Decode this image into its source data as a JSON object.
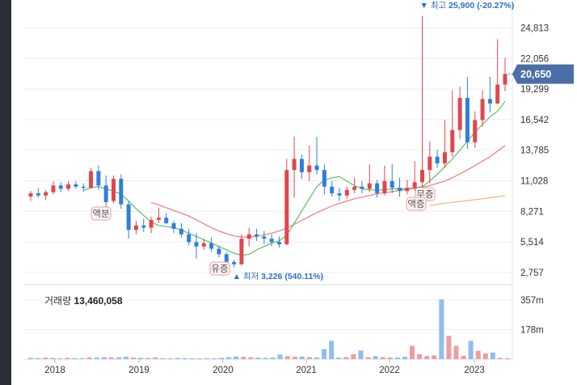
{
  "chart_data": {
    "type": "candlestick",
    "x_axis_labels": [
      "2018",
      "2019",
      "2020",
      "2021",
      "2022",
      "2023"
    ],
    "y_axis_ticks": [
      "24,813",
      "22,056",
      "19,299",
      "16,542",
      "13,785",
      "11,028",
      "8,271",
      "5,514",
      "2,757"
    ],
    "y_tick_values": [
      24813,
      22056,
      19299,
      16542,
      13785,
      11028,
      8271,
      5514,
      2757
    ],
    "ylim": [
      1800,
      26600
    ],
    "current_price_label": "20,650",
    "current_price": 20650,
    "high_marker": {
      "label": "최고",
      "value": "25,900",
      "pct": "(-20.27%)"
    },
    "low_marker": {
      "label": "최저",
      "value": "3,226",
      "pct": "(540.11%)"
    },
    "event_tags": [
      "액분",
      "유증",
      "무증",
      "액증"
    ],
    "volume": {
      "label": "거래량",
      "value": "13,460,058",
      "ticks": [
        "357m",
        "178m"
      ],
      "tick_values": [
        357,
        178
      ],
      "max_value": 400
    },
    "candles": [
      [
        9600,
        10100,
        9200,
        9900
      ],
      [
        9900,
        10400,
        9500,
        9700
      ],
      [
        9700,
        10200,
        9300,
        10000
      ],
      [
        10000,
        11000,
        9800,
        10600
      ],
      [
        10600,
        10900,
        10000,
        10300
      ],
      [
        10300,
        11000,
        10100,
        10700
      ],
      [
        10700,
        11000,
        10300,
        10500
      ],
      [
        10500,
        10800,
        10000,
        10400
      ],
      [
        10400,
        12200,
        10300,
        11900
      ],
      [
        11900,
        12400,
        10200,
        10600
      ],
      [
        10600,
        11500,
        8600,
        9100
      ],
      [
        9200,
        11500,
        9000,
        11200
      ],
      [
        11200,
        11600,
        8500,
        8900
      ],
      [
        8900,
        9200,
        5800,
        6600
      ],
      [
        6600,
        7400,
        6200,
        7000
      ],
      [
        7000,
        7600,
        6400,
        6800
      ],
      [
        6800,
        7800,
        6300,
        7500
      ],
      [
        7500,
        8600,
        7200,
        7700
      ],
      [
        7700,
        8100,
        7100,
        7200
      ],
      [
        7200,
        7400,
        6300,
        6700
      ],
      [
        6700,
        7200,
        5900,
        6200
      ],
      [
        6200,
        6700,
        5200,
        5500
      ],
      [
        5500,
        6300,
        4000,
        5100
      ],
      [
        5100,
        5800,
        4800,
        5400
      ],
      [
        5400,
        5900,
        4600,
        4900
      ],
      [
        4900,
        5200,
        4100,
        4400
      ],
      [
        4400,
        4600,
        3300,
        3700
      ],
      [
        3700,
        3900,
        3226,
        3500
      ],
      [
        3500,
        6200,
        3400,
        5800
      ],
      [
        5800,
        6800,
        5100,
        6200
      ],
      [
        6200,
        6700,
        5600,
        6000
      ],
      [
        6000,
        6500,
        5300,
        5800
      ],
      [
        5800,
        6200,
        5100,
        5500
      ],
      [
        5500,
        6000,
        5000,
        5300
      ],
      [
        5300,
        13000,
        5200,
        12000
      ],
      [
        12000,
        15000,
        9500,
        13000
      ],
      [
        13000,
        13400,
        11200,
        11800
      ],
      [
        11800,
        14200,
        11000,
        12400
      ],
      [
        12400,
        15000,
        11600,
        12000
      ],
      [
        12000,
        12500,
        9800,
        10500
      ],
      [
        10500,
        11000,
        9600,
        9900
      ],
      [
        9900,
        10400,
        9200,
        9700
      ],
      [
        9700,
        10500,
        9400,
        10200
      ],
      [
        10200,
        11300,
        9900,
        10500
      ],
      [
        10500,
        11000,
        9900,
        10300
      ],
      [
        10300,
        12500,
        10000,
        10800
      ],
      [
        10800,
        11100,
        9500,
        9900
      ],
      [
        9900,
        12400,
        9700,
        11000
      ],
      [
        11000,
        12500,
        9900,
        10400
      ],
      [
        10400,
        11300,
        9600,
        10100
      ],
      [
        10100,
        11100,
        9800,
        10400
      ],
      [
        10400,
        12800,
        10100,
        10900
      ],
      [
        10900,
        25900,
        10000,
        12000
      ],
      [
        12000,
        14600,
        10800,
        13200
      ],
      [
        13200,
        13800,
        12200,
        12600
      ],
      [
        12600,
        16500,
        12200,
        13600
      ],
      [
        13600,
        19200,
        13200,
        15600
      ],
      [
        15600,
        19500,
        14800,
        18500
      ],
      [
        18500,
        20400,
        13900,
        14500
      ],
      [
        14500,
        17300,
        14000,
        16500
      ],
      [
        16500,
        19200,
        15900,
        18400
      ],
      [
        18400,
        20400,
        17200,
        18000
      ],
      [
        18000,
        23800,
        17900,
        19700
      ],
      [
        19700,
        22100,
        19100,
        20650
      ]
    ],
    "ma_short": [
      null,
      null,
      null,
      null,
      null,
      null,
      null,
      10150,
      10400,
      10500,
      10300,
      10100,
      9800,
      9200,
      8500,
      7900,
      7300,
      7000,
      6900,
      6800,
      6600,
      6300,
      6000,
      5700,
      5400,
      5100,
      4800,
      4500,
      4300,
      4400,
      4800,
      5100,
      5400,
      5600,
      6100,
      7200,
      8300,
      9400,
      10500,
      11100,
      11300,
      11400,
      11000,
      10600,
      10300,
      10200,
      10200,
      10200,
      10300,
      10300,
      10300,
      10400,
      10500,
      11000,
      11600,
      12300,
      13000,
      13800,
      14600,
      15400,
      16100,
      16800,
      17300,
      18200
    ],
    "ma_long": [
      null,
      null,
      null,
      null,
      null,
      null,
      null,
      null,
      null,
      null,
      null,
      null,
      null,
      null,
      null,
      null,
      9050,
      8850,
      8600,
      8350,
      8100,
      7850,
      7500,
      7150,
      6800,
      6500,
      6250,
      6050,
      5950,
      5950,
      6000,
      6150,
      6300,
      6500,
      6750,
      7100,
      7450,
      7800,
      8150,
      8450,
      8750,
      9000,
      9200,
      9400,
      9550,
      9700,
      9850,
      9950,
      10050,
      10150,
      10250,
      10350,
      10450,
      10600,
      10800,
      11000,
      11300,
      11650,
      12000,
      12400,
      12800,
      13200,
      13700,
      14200
    ],
    "ma_extra": [
      null,
      null,
      null,
      null,
      null,
      null,
      null,
      null,
      null,
      null,
      null,
      null,
      null,
      null,
      null,
      null,
      null,
      null,
      null,
      null,
      null,
      null,
      null,
      null,
      null,
      null,
      null,
      null,
      null,
      null,
      null,
      null,
      null,
      null,
      null,
      null,
      null,
      null,
      null,
      null,
      null,
      null,
      null,
      null,
      null,
      null,
      null,
      null,
      null,
      null,
      null,
      null,
      null,
      8800,
      8900,
      9000,
      9080,
      9160,
      9240,
      9320,
      9400,
      9500,
      9600,
      9700
    ],
    "volumes": [
      8,
      6,
      9,
      7,
      5,
      8,
      6,
      5,
      10,
      9,
      12,
      10,
      11,
      14,
      9,
      8,
      7,
      10,
      6,
      5,
      7,
      6,
      5,
      4,
      6,
      5,
      8,
      12,
      16,
      14,
      11,
      9,
      8,
      10,
      28,
      18,
      14,
      16,
      12,
      10,
      8,
      7,
      9,
      12,
      10,
      14,
      11,
      18,
      12,
      10,
      9,
      14,
      80,
      30,
      18,
      22,
      26,
      30,
      24,
      20,
      22,
      24,
      34,
      40
    ],
    "volumes_big": {
      "40": 60,
      "41": 110,
      "44": 30,
      "45": 52,
      "56": 360,
      "57": 140,
      "58": 80,
      "60": 110,
      "61": 50
    }
  }
}
